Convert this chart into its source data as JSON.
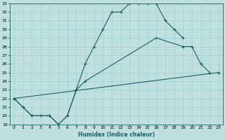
{
  "xlabel": "Humidex (Indice chaleur)",
  "bg_color": "#c0e0e0",
  "grid_color": "#a0cccc",
  "line_color": "#1a6060",
  "xlim": [
    -0.5,
    23.5
  ],
  "ylim": [
    19,
    33
  ],
  "xticks": [
    0,
    1,
    2,
    3,
    4,
    5,
    6,
    7,
    8,
    9,
    10,
    11,
    12,
    13,
    14,
    15,
    16,
    17,
    18,
    19,
    20,
    21,
    22,
    23
  ],
  "yticks": [
    19,
    20,
    21,
    22,
    23,
    24,
    25,
    26,
    27,
    28,
    29,
    30,
    31,
    32,
    33
  ],
  "series": [
    {
      "x": [
        0,
        1,
        2,
        3,
        4,
        5,
        6,
        7,
        8,
        9,
        10,
        11,
        12,
        13,
        14,
        15,
        16,
        17,
        18,
        19
      ],
      "y": [
        22,
        21,
        20,
        20,
        20,
        19,
        20,
        23,
        26,
        28,
        30,
        32,
        32,
        33,
        33,
        33,
        33,
        31,
        30,
        29
      ]
    },
    {
      "x": [
        0,
        1,
        2,
        3,
        4,
        5,
        6,
        7,
        8,
        16,
        19,
        20,
        21,
        22
      ],
      "y": [
        22,
        21,
        20,
        20,
        20,
        19,
        20,
        23,
        24,
        29,
        28,
        28,
        26,
        25
      ]
    },
    {
      "x": [
        0,
        23
      ],
      "y": [
        22,
        25
      ]
    }
  ]
}
